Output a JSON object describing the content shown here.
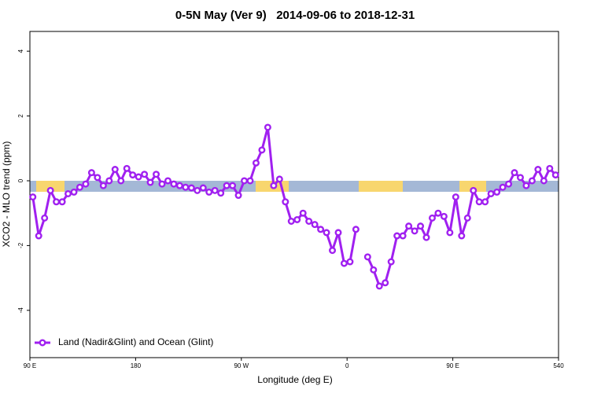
{
  "chart_data": {
    "type": "line",
    "title": "0-5N May (Ver 9)   2014-09-06 to 2018-12-31",
    "x_label": "Longitude (deg E)",
    "y_label": "XCO2 - MLO trend (ppm)",
    "xlim": [
      90,
      540
    ],
    "ylim": [
      -5.46,
      4.61
    ],
    "xticks": [
      {
        "value": 90,
        "label": "90 E"
      },
      180,
      {
        "value": 270,
        "label": "90 W"
      },
      {
        "value": 360,
        "label": "0"
      },
      {
        "value": 450,
        "label": "90 E"
      },
      540
    ],
    "yticks": [
      -4,
      -2,
      0,
      2,
      4
    ],
    "legend": "lower left",
    "x": [
      92.5,
      97.5,
      102.5,
      107.5,
      112.5,
      117.5,
      122.5,
      127.5,
      132.5,
      137.5,
      142.5,
      147.5,
      152.5,
      157.5,
      162.5,
      167.5,
      172.5,
      177.5,
      182.5,
      187.5,
      192.5,
      197.5,
      202.5,
      207.5,
      212.5,
      217.5,
      222.5,
      227.5,
      232.5,
      237.5,
      242.5,
      247.5,
      252.5,
      257.5,
      262.5,
      267.5,
      272.5,
      277.5,
      282.5,
      287.5,
      292.5,
      297.5,
      302.5,
      307.5,
      312.5,
      317.5,
      322.5,
      327.5,
      332.5,
      337.5,
      342.5,
      347.5,
      352.5,
      357.5,
      362.5,
      367.5,
      372.5,
      377.5,
      382.5,
      387.5,
      392.5,
      397.5,
      402.5,
      407.5,
      412.5,
      417.5,
      422.5,
      427.5,
      432.5,
      437.5,
      442.5,
      447.5,
      452.5,
      457.5,
      462.5,
      467.5,
      472.5,
      477.5,
      482.5,
      487.5,
      492.5,
      497.5,
      502.5,
      507.5,
      512.5,
      517.5,
      522.5,
      527.5,
      532.5,
      537.5
    ],
    "series": [
      {
        "name": "Land (Nadir&Glint) and Ocean (Glint)",
        "color": "#a020f0",
        "values": [
          -0.5,
          -1.7,
          -1.15,
          -0.3,
          -0.65,
          -0.65,
          -0.4,
          -0.35,
          -0.2,
          -0.1,
          0.25,
          0.1,
          -0.15,
          0.0,
          0.35,
          0.0,
          0.38,
          0.18,
          0.12,
          0.2,
          -0.05,
          0.2,
          -0.1,
          0.0,
          -0.1,
          -0.15,
          -0.2,
          -0.22,
          -0.3,
          -0.22,
          -0.35,
          -0.3,
          -0.38,
          -0.15,
          -0.15,
          -0.45,
          0.0,
          0.0,
          0.55,
          0.95,
          1.65,
          -0.15,
          0.05,
          -0.65,
          -1.25,
          -1.2,
          -1.0,
          -1.25,
          -1.35,
          -1.5,
          -1.6,
          -2.15,
          -1.6,
          -2.55,
          -2.5,
          -1.5,
          null,
          -2.35,
          -2.75,
          -3.25,
          -3.15,
          -2.5,
          -1.7,
          -1.7,
          -1.4,
          -1.55,
          -1.4,
          -1.75,
          -1.15,
          -1.0,
          -1.1,
          -1.6,
          -0.5,
          -1.7,
          -1.15,
          -0.3,
          -0.65,
          -0.65,
          -0.4,
          -0.35,
          -0.2,
          -0.1,
          0.25,
          0.1,
          -0.15,
          0.0,
          0.35,
          0.0,
          0.38,
          0.18
        ]
      }
    ]
  }
}
